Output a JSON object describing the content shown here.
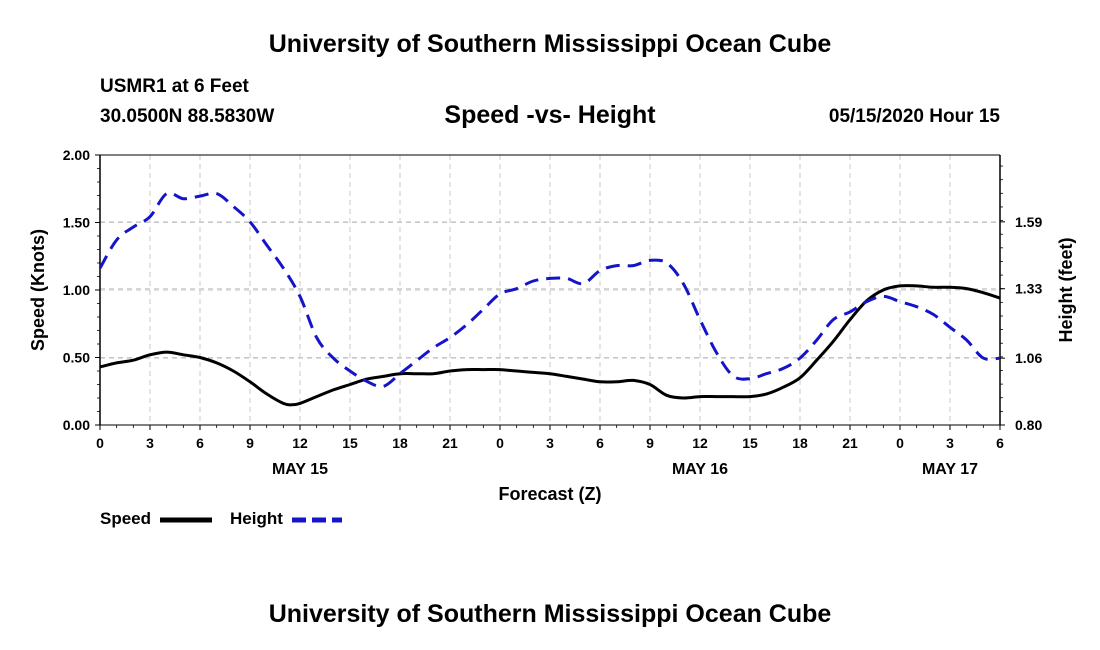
{
  "header": {
    "title": "University of Southern Mississippi Ocean Cube",
    "station": "USMR1 at 6 Feet",
    "coordinates": "30.0500N 88.5830W",
    "subtitle": "Speed -vs- Height",
    "datetime": "05/15/2020 Hour 15"
  },
  "footer": {
    "title": "University of Southern Mississippi Ocean Cube"
  },
  "colors": {
    "speed": "#000000",
    "height": "#1414c8",
    "grid": "#c8c8c8",
    "axis": "#000000"
  },
  "chart_data": {
    "type": "line",
    "title": "Speed -vs- Height",
    "xlabel": "Forecast (Z)",
    "ylabel": "Speed (Knots)",
    "y2label": "Height (feet)",
    "xlim": [
      0,
      54
    ],
    "ylim": [
      0,
      2.0
    ],
    "y2lim": [
      0.8,
      1.85
    ],
    "grid": true,
    "x_ticks": [
      0,
      3,
      6,
      9,
      12,
      15,
      18,
      21,
      24,
      27,
      30,
      33,
      36,
      39,
      42,
      45,
      48,
      51,
      54
    ],
    "x_tick_labels": [
      "0",
      "3",
      "6",
      "9",
      "12",
      "15",
      "18",
      "21",
      "0",
      "3",
      "6",
      "9",
      "12",
      "15",
      "18",
      "21",
      "0",
      "3",
      "6"
    ],
    "date_labels": [
      {
        "hour": 12,
        "label": "MAY 15"
      },
      {
        "hour": 36,
        "label": "MAY 16"
      },
      {
        "hour": 51,
        "label": "MAY 17"
      }
    ],
    "y_ticks": [
      0.0,
      0.5,
      1.0,
      1.5,
      2.0
    ],
    "y_tick_labels": [
      "0.00",
      "0.50",
      "1.00",
      "1.50",
      "2.00"
    ],
    "y2_ticks": [
      0.8,
      1.06,
      1.33,
      1.59
    ],
    "y2_tick_labels": [
      "0.80",
      "1.06",
      "1.33",
      "1.59"
    ],
    "legend": {
      "placement": "bottom-left"
    },
    "series": [
      {
        "name": "Speed",
        "axis": "left",
        "style": "solid",
        "x": [
          0,
          1,
          2,
          3,
          4,
          5,
          6,
          7,
          8,
          9,
          10,
          11,
          11.5,
          12,
          13,
          14,
          15,
          16,
          17,
          18,
          19,
          20,
          21,
          22,
          23,
          24,
          25,
          26,
          27,
          28,
          29,
          30,
          31,
          32,
          33,
          34,
          35,
          36,
          37,
          38,
          39,
          40,
          41,
          42,
          43,
          44,
          45,
          46,
          47,
          48,
          49,
          50,
          51,
          52,
          53,
          54
        ],
        "values": [
          0.43,
          0.46,
          0.48,
          0.52,
          0.54,
          0.52,
          0.5,
          0.46,
          0.4,
          0.32,
          0.23,
          0.16,
          0.15,
          0.16,
          0.21,
          0.26,
          0.3,
          0.34,
          0.36,
          0.38,
          0.38,
          0.38,
          0.4,
          0.41,
          0.41,
          0.41,
          0.4,
          0.39,
          0.38,
          0.36,
          0.34,
          0.32,
          0.32,
          0.33,
          0.3,
          0.22,
          0.2,
          0.21,
          0.21,
          0.21,
          0.21,
          0.23,
          0.28,
          0.35,
          0.48,
          0.62,
          0.78,
          0.92,
          1.0,
          1.03,
          1.03,
          1.02,
          1.02,
          1.01,
          0.98,
          0.94
        ]
      },
      {
        "name": "Height",
        "axis": "right",
        "style": "dashed",
        "x": [
          0,
          1,
          2,
          3,
          4,
          5,
          6,
          7,
          8,
          9,
          10,
          11,
          12,
          13,
          14,
          15,
          16,
          17,
          18,
          19,
          20,
          21,
          22,
          23,
          24,
          25,
          26,
          27,
          28,
          29,
          30,
          31,
          32,
          33,
          34,
          35,
          36,
          37,
          38,
          39,
          40,
          41,
          42,
          43,
          44,
          45,
          46,
          47,
          48,
          49,
          50,
          51,
          52,
          53,
          54
        ],
        "values": [
          1.41,
          1.52,
          1.57,
          1.61,
          1.7,
          1.68,
          1.69,
          1.7,
          1.65,
          1.59,
          1.5,
          1.41,
          1.3,
          1.14,
          1.06,
          1.01,
          0.97,
          0.95,
          1.0,
          1.05,
          1.1,
          1.14,
          1.19,
          1.25,
          1.31,
          1.33,
          1.36,
          1.37,
          1.37,
          1.35,
          1.4,
          1.42,
          1.42,
          1.44,
          1.43,
          1.35,
          1.21,
          1.08,
          0.99,
          0.98,
          1.0,
          1.02,
          1.06,
          1.13,
          1.21,
          1.24,
          1.28,
          1.3,
          1.28,
          1.26,
          1.23,
          1.18,
          1.13,
          1.06,
          1.06
        ]
      }
    ]
  }
}
